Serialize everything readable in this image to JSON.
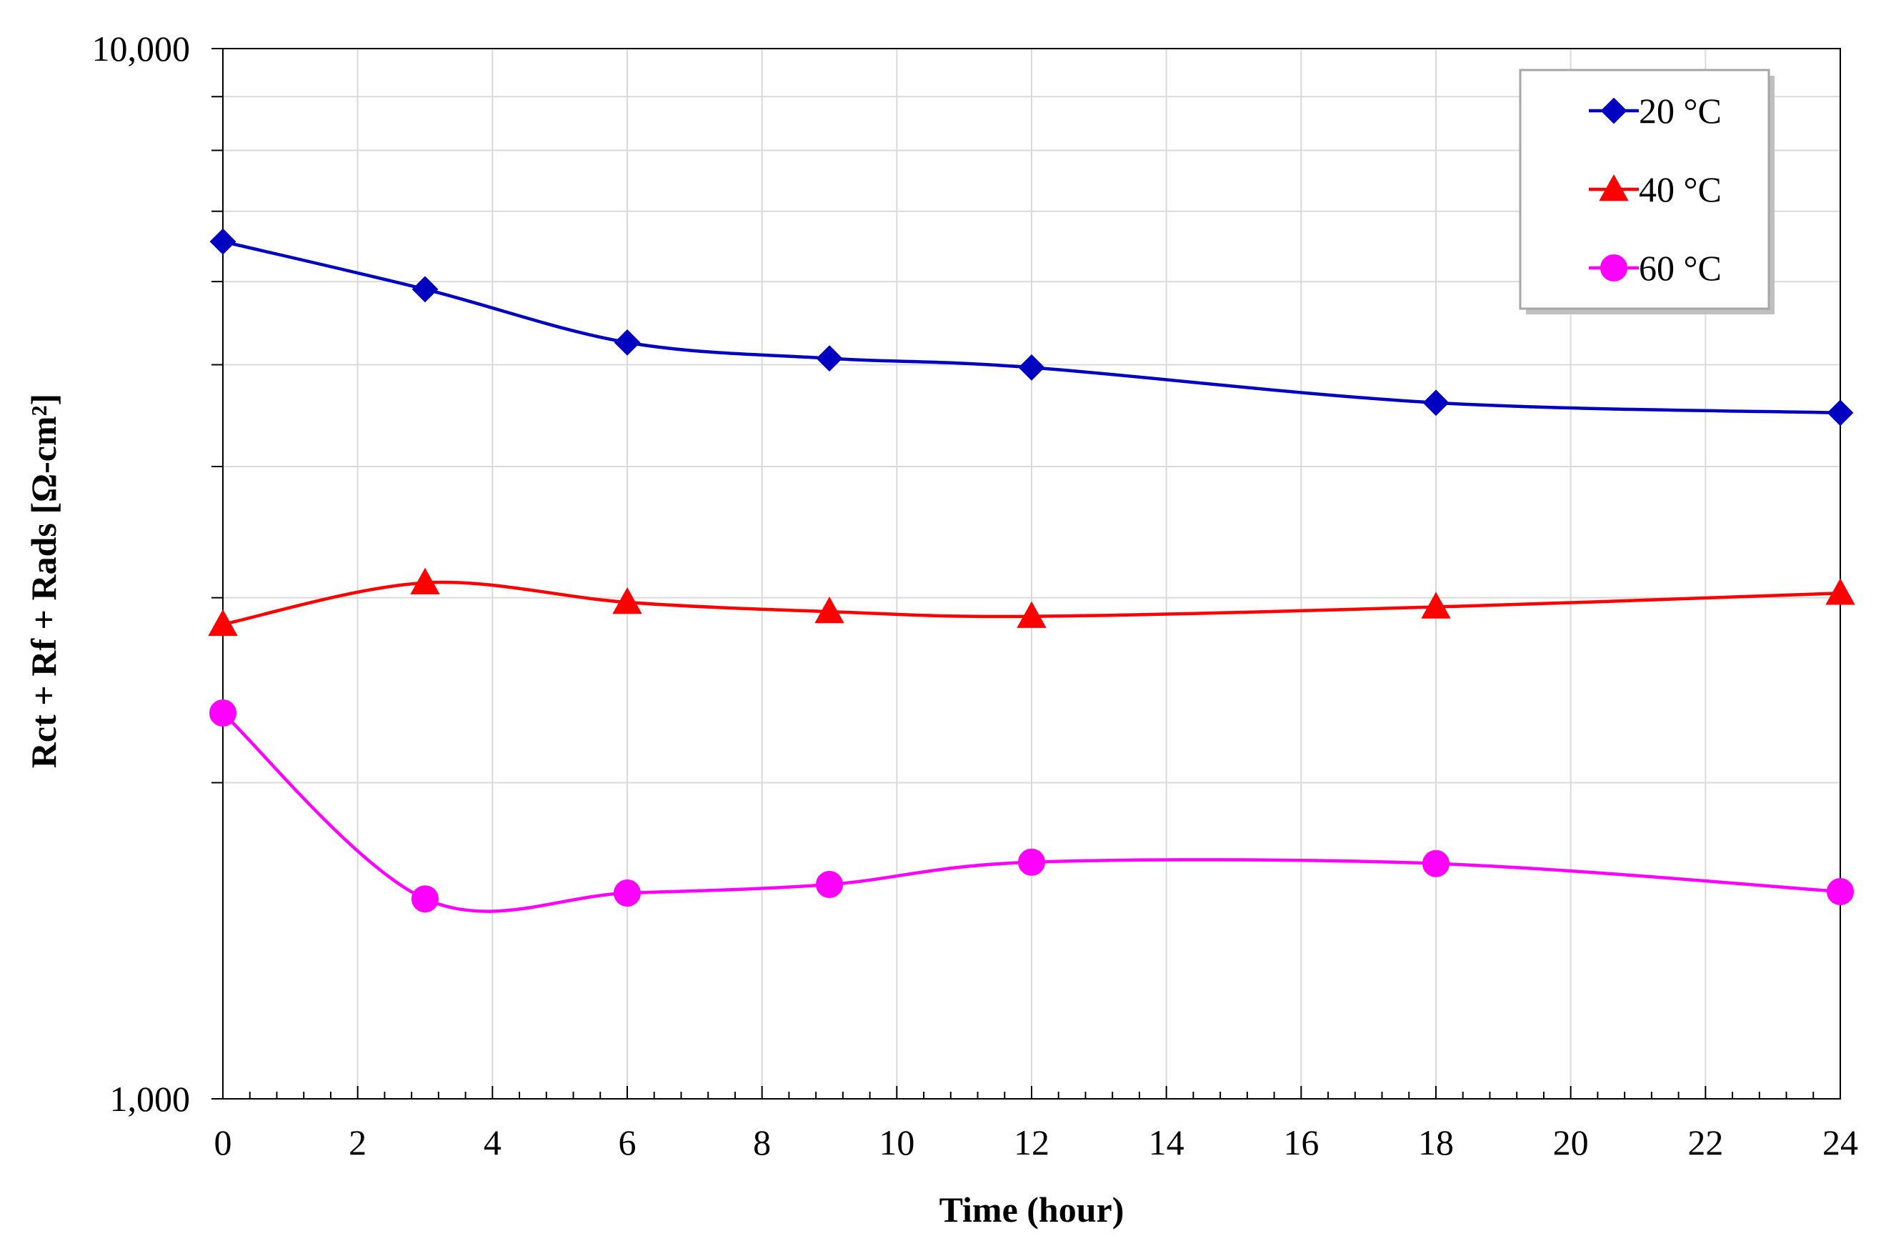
{
  "chart_data": {
    "type": "line",
    "title": "",
    "xlabel": "Time (hour)",
    "ylabel": "Rct + Rf + Rads [Ω-cm²]",
    "yscale": "log",
    "xlim": [
      0,
      24
    ],
    "ylim": [
      1000,
      10000
    ],
    "x_ticks": [
      0,
      2,
      4,
      6,
      8,
      10,
      12,
      14,
      16,
      18,
      20,
      22,
      24
    ],
    "x_tick_labels": [
      "0",
      "2",
      "4",
      "6",
      "8",
      "10",
      "12",
      "14",
      "16",
      "18",
      "20",
      "22",
      "24"
    ],
    "y_tick_labels": [
      "1,000",
      "10,000"
    ],
    "grid": true,
    "legend_position": "top-right",
    "x": [
      0,
      3,
      6,
      9,
      12,
      18,
      24
    ],
    "series": [
      {
        "name": "20 °C",
        "color": "#0000c0",
        "marker": "diamond",
        "values": [
          6550,
          5900,
          5250,
          5070,
          4970,
          4600,
          4500
        ]
      },
      {
        "name": "40 °C",
        "color": "#ff0000",
        "marker": "triangle",
        "values": [
          2830,
          3100,
          2970,
          2910,
          2880,
          2940,
          3030
        ]
      },
      {
        "name": "60 °C",
        "color": "#ff00ff",
        "marker": "circle",
        "values": [
          2330,
          1550,
          1570,
          1600,
          1680,
          1675,
          1575
        ]
      }
    ]
  }
}
